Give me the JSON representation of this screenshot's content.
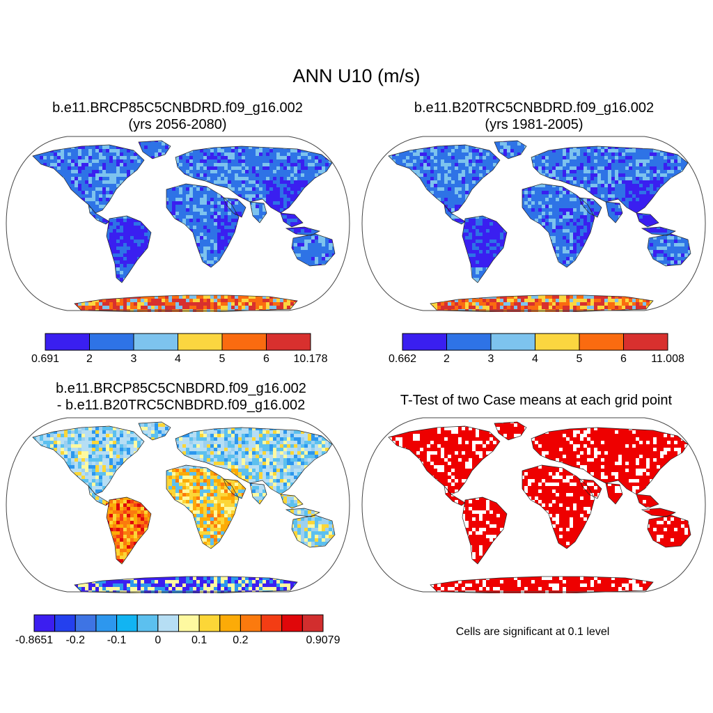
{
  "main_title": "ANN U10 (m/s)",
  "panels": [
    {
      "title_line1": "b.e11.BRCP85C5CNBDRD.f09_g16.002",
      "title_line2": "(yrs 2056-2080)",
      "map_style": "speed",
      "colorbar": {
        "colors": [
          "#3a1ff0",
          "#2e73e6",
          "#7dc3ee",
          "#fbd640",
          "#fa6b10",
          "#d8302e"
        ],
        "labels": [
          "0.691",
          "2",
          "3",
          "4",
          "5",
          "6",
          "10.178"
        ]
      }
    },
    {
      "title_line1": "b.e11.B20TRC5CNBDRD.f09_g16.002",
      "title_line2": "(yrs 1981-2005)",
      "map_style": "speed",
      "colorbar": {
        "colors": [
          "#3a1ff0",
          "#2e73e6",
          "#7dc3ee",
          "#fbd640",
          "#fa6b10",
          "#d8302e"
        ],
        "labels": [
          "0.662",
          "2",
          "3",
          "4",
          "5",
          "6",
          "11.008"
        ]
      }
    },
    {
      "title_line1": "b.e11.BRCP85C5CNBDRD.f09_g16.002",
      "title_line2": "- b.e11.B20TRC5CNBDRD.f09_g16.002",
      "map_style": "difference",
      "colorbar": {
        "colors": [
          "#3c1ef0",
          "#2440ee",
          "#3e74e4",
          "#2d97ee",
          "#12b4f2",
          "#5cc0ef",
          "#b6def4",
          "#fef9a0",
          "#fcd637",
          "#fcab08",
          "#fb7a0e",
          "#f33d14",
          "#e0070a",
          "#d22e2e"
        ],
        "labels": [
          "-0.8651",
          "",
          "-0.2",
          "",
          "-0.1",
          "",
          "0",
          "",
          "0.1",
          "",
          "0.2",
          "",
          "",
          "",
          "0.9079"
        ]
      }
    },
    {
      "title_line1": "T-Test of two Case means at each grid point",
      "title_line2": "",
      "map_style": "significance",
      "note": "Cells are significant at 0.1 level"
    }
  ]
}
